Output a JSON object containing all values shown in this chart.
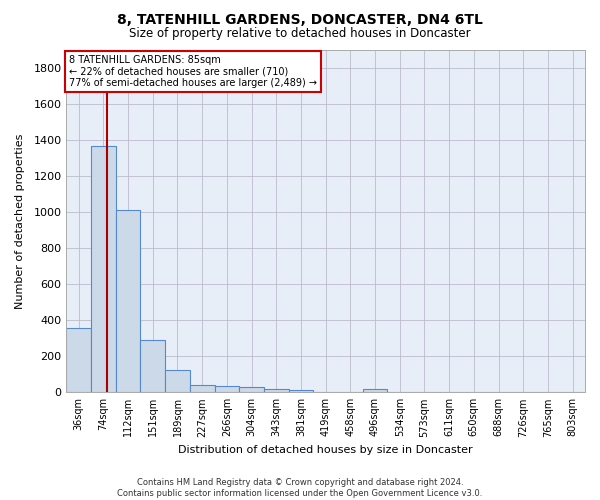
{
  "title1": "8, TATENHILL GARDENS, DONCASTER, DN4 6TL",
  "title2": "Size of property relative to detached houses in Doncaster",
  "xlabel": "Distribution of detached houses by size in Doncaster",
  "ylabel": "Number of detached properties",
  "bar_color": "#ccd9e8",
  "bar_edge_color": "#5588cc",
  "categories": [
    "36sqm",
    "74sqm",
    "112sqm",
    "151sqm",
    "189sqm",
    "227sqm",
    "266sqm",
    "304sqm",
    "343sqm",
    "381sqm",
    "419sqm",
    "458sqm",
    "496sqm",
    "534sqm",
    "573sqm",
    "611sqm",
    "650sqm",
    "688sqm",
    "726sqm",
    "765sqm",
    "803sqm"
  ],
  "values": [
    355,
    1365,
    1010,
    290,
    125,
    42,
    35,
    28,
    20,
    15,
    0,
    0,
    20,
    0,
    0,
    0,
    0,
    0,
    0,
    0,
    0
  ],
  "ylim": [
    0,
    1900
  ],
  "yticks": [
    0,
    200,
    400,
    600,
    800,
    1000,
    1200,
    1400,
    1600,
    1800
  ],
  "property_label": "8 TATENHILL GARDENS: 85sqm",
  "pct_smaller": "22% of detached houses are smaller (710)",
  "pct_larger": "77% of semi-detached houses are larger (2,489)",
  "red_line_x": 1.15,
  "footer": "Contains HM Land Registry data © Crown copyright and database right 2024.\nContains public sector information licensed under the Open Government Licence v3.0.",
  "plot_background": "#e8eef8",
  "fig_background": "#ffffff"
}
